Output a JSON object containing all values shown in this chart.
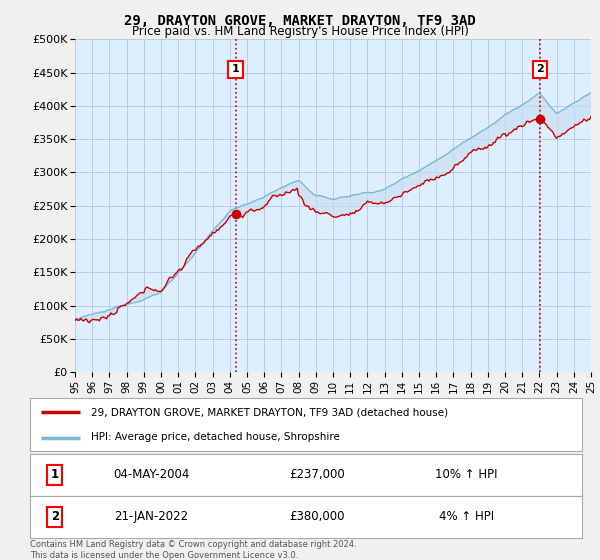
{
  "title": "29, DRAYTON GROVE, MARKET DRAYTON, TF9 3AD",
  "subtitle": "Price paid vs. HM Land Registry's House Price Index (HPI)",
  "legend_line1": "29, DRAYTON GROVE, MARKET DRAYTON, TF9 3AD (detached house)",
  "legend_line2": "HPI: Average price, detached house, Shropshire",
  "annotation1_label": "1",
  "annotation1_date": "04-MAY-2004",
  "annotation1_price": "£237,000",
  "annotation1_hpi": "10% ↑ HPI",
  "annotation2_label": "2",
  "annotation2_date": "21-JAN-2022",
  "annotation2_price": "£380,000",
  "annotation2_hpi": "4% ↑ HPI",
  "footer": "Contains HM Land Registry data © Crown copyright and database right 2024.\nThis data is licensed under the Open Government Licence v3.0.",
  "sale1_year": 2004.34,
  "sale1_value": 237000,
  "sale2_year": 2022.05,
  "sale2_value": 380000,
  "hpi_color": "#7ab8d9",
  "price_color": "#cc0000",
  "vline_color": "#cc0000",
  "fill_color": "#c8dff0",
  "background_color": "#f0f0f0",
  "plot_background": "#ddeeff",
  "ylim": [
    0,
    500000
  ],
  "yticks": [
    0,
    50000,
    100000,
    150000,
    200000,
    250000,
    300000,
    350000,
    400000,
    450000,
    500000
  ],
  "xmin": 1995,
  "xmax": 2025
}
